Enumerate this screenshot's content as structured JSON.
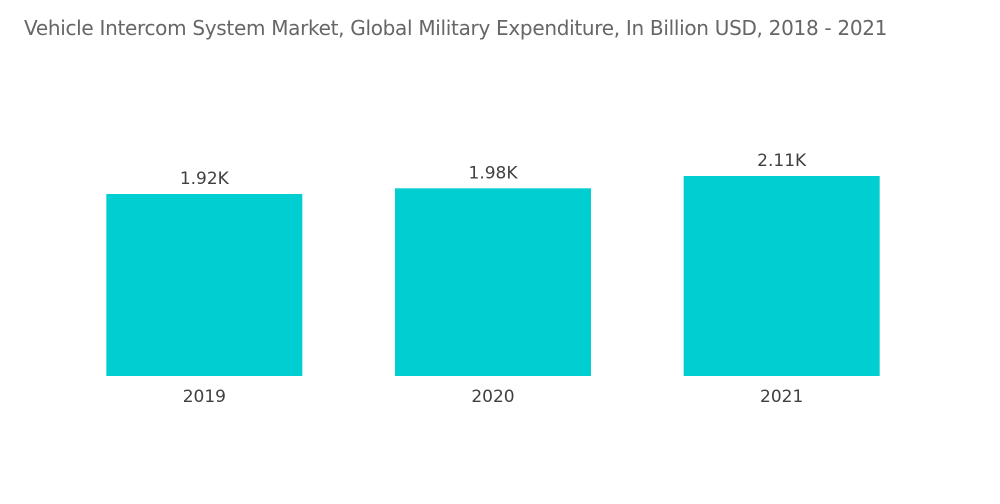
{
  "chart_data": {
    "type": "bar",
    "title": "Vehicle Intercom System Market, Global Military Expenditure, In Billion USD, 2018 - 2021",
    "xlabel": "",
    "ylabel": "",
    "categories": [
      "2019",
      "2020",
      "2021"
    ],
    "values": [
      1920,
      1980,
      2110
    ],
    "value_labels": [
      "1.92K",
      "1.98K",
      "2.11K"
    ],
    "ylim": [
      0,
      2200
    ],
    "grid": false,
    "legend": "none",
    "bar_color": "#00CED1"
  }
}
